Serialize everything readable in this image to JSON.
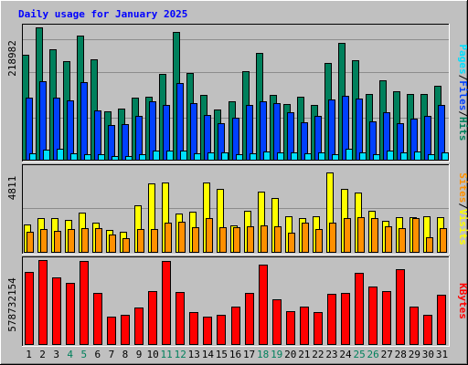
{
  "chart_data": {
    "type": "bar",
    "title": "Daily usage for January 2025",
    "categories": [
      "1",
      "2",
      "3",
      "4",
      "5",
      "6",
      "7",
      "8",
      "9",
      "10",
      "11",
      "12",
      "13",
      "14",
      "15",
      "16",
      "17",
      "18",
      "19",
      "20",
      "21",
      "22",
      "23",
      "24",
      "25",
      "26",
      "27",
      "28",
      "29",
      "30",
      "31"
    ],
    "weekend_days": [
      "4",
      "5",
      "11",
      "12",
      "18",
      "19",
      "25",
      "26"
    ],
    "panels": [
      {
        "id": "hits-panel",
        "ymax": 218982,
        "ymax_label": "218982",
        "side_labels": [
          "Pages",
          "Files",
          "Hits"
        ],
        "series": [
          {
            "name": "Hits",
            "color": "#00805c",
            "values": [
              174000,
              218982,
              183000,
              164000,
              205000,
              166000,
              81000,
              86000,
              104000,
              105000,
              143000,
              211000,
              144000,
              108000,
              84000,
              98000,
              147000,
              177000,
              108000,
              93000,
              105000,
              91000,
              160000,
              194000,
              165000,
              109000,
              132000,
              114000,
              110000,
              109000,
              123000
            ]
          },
          {
            "name": "Files",
            "color": "#0040ff",
            "values": [
              104000,
              130000,
              103000,
              99000,
              129000,
              83000,
              59000,
              60000,
              73000,
              98000,
              92000,
              128000,
              94000,
              75000,
              62000,
              71000,
              92000,
              97000,
              95000,
              80000,
              63000,
              74000,
              101000,
              106000,
              102000,
              65000,
              80000,
              62000,
              69000,
              73000,
              91000
            ]
          },
          {
            "name": "Pages",
            "color": "#00e0ff",
            "values": [
              12000,
              18000,
              19000,
              12000,
              11000,
              11000,
              7000,
              8000,
              10000,
              17000,
              17000,
              16000,
              12000,
              13000,
              13000,
              11000,
              12000,
              15000,
              14000,
              13000,
              12000,
              13000,
              11000,
              19000,
              14000,
              11000,
              16000,
              14000,
              15000,
              10000,
              14000
            ]
          }
        ]
      },
      {
        "id": "visits-panel",
        "ymax": 4811,
        "ymax_label": "4811",
        "side_labels": [
          "Sites",
          "Visits"
        ],
        "series": [
          {
            "name": "Visits",
            "color": "#ffff00",
            "values": [
              1610,
              1940,
              1970,
              1870,
              2300,
              1700,
              1290,
              1210,
              2710,
              3920,
              3960,
              2200,
              2330,
              3990,
              3640,
              1560,
              2390,
              3460,
              3110,
              2080,
              1980,
              2090,
              4570,
              3640,
              3390,
              2400,
              1790,
              2010,
              2040,
              2090,
              2040
            ]
          },
          {
            "name": "Sites",
            "color": "#ff9000",
            "values": [
              1170,
              1320,
              1260,
              1340,
              1390,
              1380,
              1030,
              820,
              1350,
              1320,
              1730,
              1750,
              1450,
              1940,
              1450,
              1430,
              1510,
              1540,
              1510,
              1150,
              1730,
              1320,
              1710,
              1960,
              2010,
              1940,
              1480,
              1420,
              1990,
              870,
              1380
            ]
          }
        ]
      },
      {
        "id": "kbytes-panel",
        "ymax": 578732154,
        "ymax_label": "578732154",
        "side_labels": [
          "KBytes"
        ],
        "series": [
          {
            "name": "KBytes",
            "color": "#ff0000",
            "values": [
              496000000,
              578732154,
              458000000,
              423000000,
              570000000,
              352000000,
              194000000,
              206000000,
              256000000,
              369000000,
              570000000,
              362000000,
              227000000,
              194000000,
              206000000,
              261000000,
              352000000,
              545000000,
              312000000,
              233000000,
              264000000,
              227000000,
              346000000,
              352000000,
              489000000,
              400000000,
              369000000,
              514000000,
              264000000,
              204000000,
              340000000
            ]
          }
        ]
      }
    ]
  },
  "colors": {
    "background": "#c0c0c0",
    "title": "#0000ff",
    "weekend_label": "#00805c",
    "weekday_label": "#000000",
    "grid": "#8c8c8c",
    "axis_label": "#000000"
  }
}
